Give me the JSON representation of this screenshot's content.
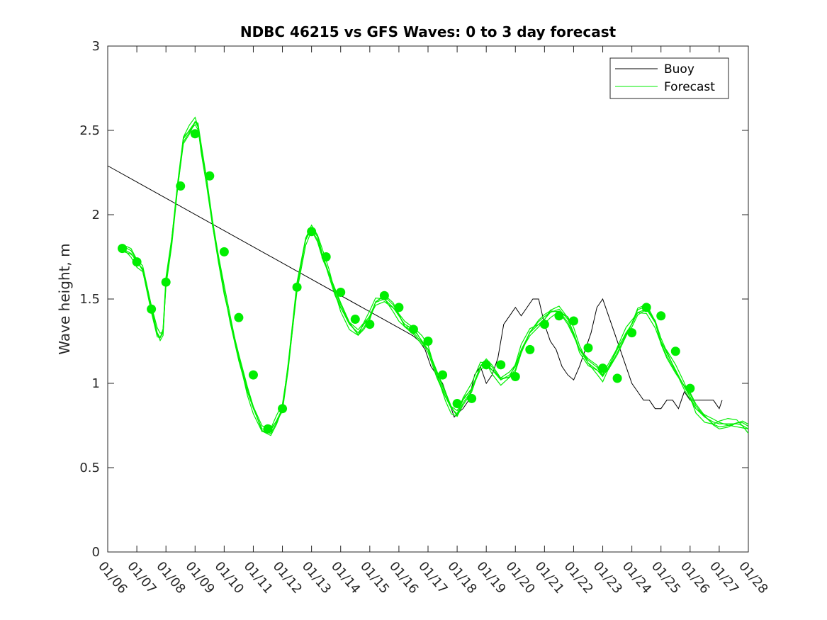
{
  "chart_data": {
    "type": "line",
    "title": "NDBC 46215 vs GFS Waves: 0 to 3 day forecast",
    "xlabel": "",
    "ylabel": "Wave height, m",
    "xlim": [
      0,
      22
    ],
    "ylim": [
      0,
      3
    ],
    "yticks": [
      0,
      0.5,
      1,
      1.5,
      2,
      2.5,
      3
    ],
    "ytick_labels": [
      "0",
      "0.5",
      "1",
      "1.5",
      "2",
      "2.5",
      "3"
    ],
    "xtick_labels": [
      "01/06",
      "01/07",
      "01/08",
      "01/09",
      "01/10",
      "01/11",
      "01/12",
      "01/13",
      "01/14",
      "01/15",
      "01/16",
      "01/17",
      "01/18",
      "01/19",
      "01/20",
      "01/21",
      "01/22",
      "01/23",
      "01/24",
      "01/25",
      "01/26",
      "01/27",
      "01/28"
    ],
    "legend": {
      "position": "top-right",
      "entries": [
        "Buoy",
        "Forecast"
      ]
    },
    "colors": {
      "buoy": "#000000",
      "forecast": "#00ee00",
      "axis": "#262626"
    },
    "series": [
      {
        "name": "Buoy",
        "x": [
          0,
          10.3,
          10.5,
          10.7,
          10.9,
          11.1,
          11.3,
          11.5,
          11.7,
          11.9,
          12.0,
          12.2,
          12.4,
          12.6,
          12.8,
          13.0,
          13.2,
          13.4,
          13.6,
          13.8,
          14.0,
          14.2,
          14.4,
          14.6,
          14.8,
          15.0,
          15.2,
          15.4,
          15.6,
          15.8,
          16.0,
          16.2,
          16.4,
          16.6,
          16.8,
          17.0,
          17.2,
          17.4,
          17.6,
          17.8,
          18.0,
          18.2,
          18.4,
          18.6,
          18.8,
          19.0,
          19.2,
          19.4,
          19.6,
          19.8,
          20.0,
          20.2,
          20.4,
          20.6,
          20.8,
          21.0,
          21.1
        ],
        "values": [
          2.29,
          1.3,
          1.28,
          1.25,
          1.2,
          1.1,
          1.05,
          1.0,
          0.9,
          0.8,
          0.82,
          0.85,
          0.9,
          1.05,
          1.1,
          1.0,
          1.05,
          1.15,
          1.35,
          1.4,
          1.45,
          1.4,
          1.45,
          1.5,
          1.5,
          1.35,
          1.25,
          1.2,
          1.1,
          1.05,
          1.02,
          1.1,
          1.2,
          1.3,
          1.45,
          1.5,
          1.4,
          1.3,
          1.2,
          1.1,
          1.0,
          0.95,
          0.9,
          0.9,
          0.85,
          0.85,
          0.9,
          0.9,
          0.85,
          0.95,
          0.9,
          0.9,
          0.9,
          0.9,
          0.9,
          0.85,
          0.9
        ]
      },
      {
        "name": "Forecast",
        "x": [
          0.5,
          0.8,
          1.0,
          1.2,
          1.5,
          1.7,
          1.8,
          1.9,
          2.0,
          2.2,
          2.4,
          2.6,
          2.8,
          3.0,
          3.1,
          3.2,
          3.4,
          3.6,
          3.8,
          4.0,
          4.2,
          4.5,
          4.8,
          5.0,
          5.3,
          5.6,
          5.8,
          6.0,
          6.2,
          6.5,
          6.8,
          7.0,
          7.2,
          7.4,
          7.6,
          7.8,
          8.0,
          8.3,
          8.6,
          8.8,
          9.0,
          9.2,
          9.5,
          9.8,
          10.0,
          10.2,
          10.5,
          10.8,
          11.0,
          11.3,
          11.6,
          11.8,
          12.0,
          12.2,
          12.5,
          12.8,
          13.0,
          13.2,
          13.5,
          13.8,
          14.0,
          14.2,
          14.5,
          14.8,
          15.0,
          15.2,
          15.5,
          15.8,
          16.0,
          16.2,
          16.5,
          16.8,
          17.0,
          17.2,
          17.5,
          17.8,
          18.0,
          18.2,
          18.5,
          18.8,
          19.0,
          19.2,
          19.5,
          19.8,
          20.0,
          20.2,
          20.5,
          20.8,
          21.0,
          21.3,
          21.6,
          21.8,
          22.0
        ],
        "values": [
          1.8,
          1.77,
          1.72,
          1.68,
          1.45,
          1.3,
          1.27,
          1.3,
          1.6,
          1.85,
          2.17,
          2.45,
          2.5,
          2.55,
          2.52,
          2.4,
          2.2,
          1.95,
          1.75,
          1.55,
          1.38,
          1.15,
          0.95,
          0.85,
          0.73,
          0.72,
          0.78,
          0.85,
          1.1,
          1.57,
          1.85,
          1.92,
          1.87,
          1.75,
          1.65,
          1.54,
          1.45,
          1.35,
          1.3,
          1.35,
          1.4,
          1.48,
          1.5,
          1.45,
          1.4,
          1.35,
          1.32,
          1.25,
          1.2,
          1.05,
          0.92,
          0.85,
          0.82,
          0.9,
          0.97,
          1.1,
          1.12,
          1.08,
          1.02,
          1.05,
          1.1,
          1.2,
          1.3,
          1.35,
          1.38,
          1.42,
          1.44,
          1.38,
          1.3,
          1.2,
          1.12,
          1.08,
          1.04,
          1.1,
          1.2,
          1.3,
          1.35,
          1.42,
          1.44,
          1.36,
          1.25,
          1.18,
          1.08,
          0.98,
          0.92,
          0.85,
          0.8,
          0.77,
          0.76,
          0.76,
          0.76,
          0.75,
          0.73
        ]
      },
      {
        "name": "Forecast markers",
        "x": [
          0.5,
          1.0,
          1.5,
          2.0,
          2.5,
          3.0,
          3.5,
          4.0,
          4.5,
          5.0,
          5.5,
          6.0,
          6.5,
          7.0,
          7.5,
          8.0,
          8.5,
          9.0,
          9.5,
          10.0,
          10.5,
          11.0,
          11.5,
          12.0,
          12.5,
          13.0,
          13.5,
          14.0,
          14.5,
          15.0,
          15.5,
          16.0,
          16.5,
          17.0,
          17.5,
          18.0,
          18.5,
          19.0,
          19.5,
          20.0
        ],
        "values": [
          1.8,
          1.72,
          1.44,
          1.6,
          2.17,
          2.48,
          2.23,
          1.78,
          1.39,
          1.05,
          0.73,
          0.85,
          1.57,
          1.9,
          1.75,
          1.54,
          1.38,
          1.35,
          1.52,
          1.45,
          1.32,
          1.25,
          1.05,
          0.88,
          0.91,
          1.11,
          1.11,
          1.04,
          1.2,
          1.35,
          1.4,
          1.37,
          1.21,
          1.09,
          1.03,
          1.3,
          1.45,
          1.4,
          1.19,
          0.97
        ]
      }
    ]
  }
}
